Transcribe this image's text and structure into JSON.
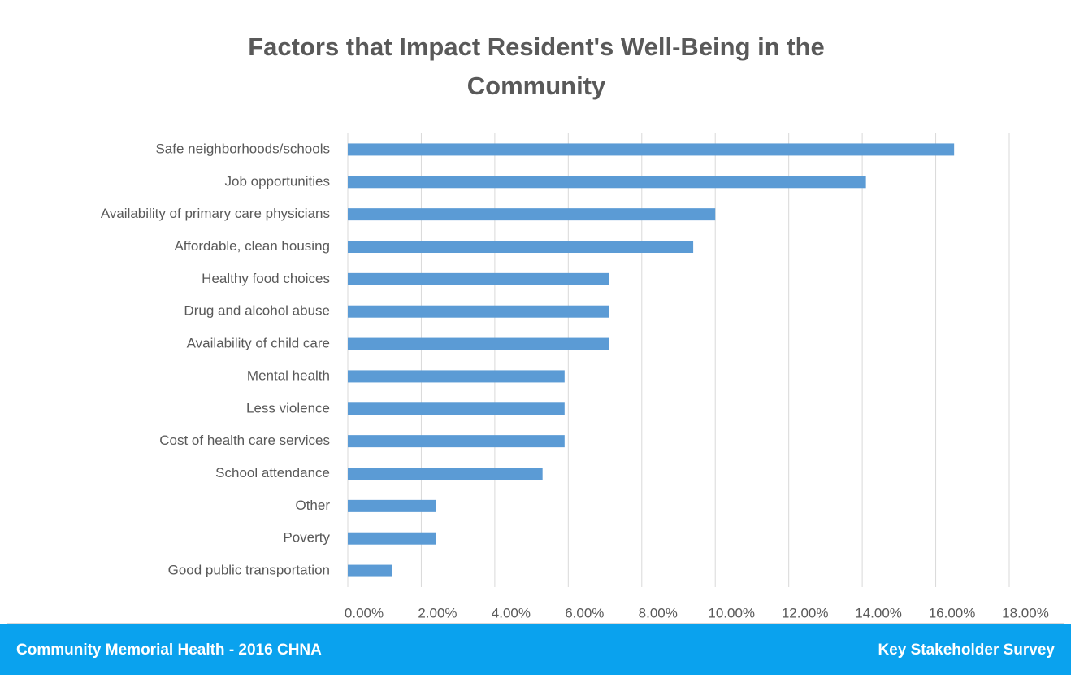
{
  "chart_data": {
    "type": "bar",
    "orientation": "horizontal",
    "title": [
      "Factors that Impact Resident's Well-Being in the",
      "Community"
    ],
    "categories": [
      "Safe neighborhoods/schools",
      "Job opportunities",
      "Availability of primary care physicians",
      "Affordable, clean housing",
      "Healthy food choices",
      "Drug and alcohol abuse",
      "Availability of child care",
      "Mental health",
      "Less violence",
      "Cost of health care services",
      "School attendance",
      "Other",
      "Poverty",
      "Good public transportation"
    ],
    "values": [
      16.5,
      14.1,
      10.0,
      9.4,
      7.1,
      7.1,
      7.1,
      5.9,
      5.9,
      5.9,
      5.3,
      2.4,
      2.4,
      1.2
    ],
    "color": "#5b9bd5",
    "xlim": [
      0,
      18
    ],
    "xticks": [
      {
        "value": 0,
        "label": "0.00%"
      },
      {
        "value": 2,
        "label": "2.00%"
      },
      {
        "value": 4,
        "label": "4.00%"
      },
      {
        "value": 6,
        "label": "6.00%"
      },
      {
        "value": 8,
        "label": "8.00%"
      },
      {
        "value": 10,
        "label": "10.00%"
      },
      {
        "value": 12,
        "label": "12.00%"
      },
      {
        "value": 14,
        "label": "14.00%"
      },
      {
        "value": 16,
        "label": "16.00%"
      },
      {
        "value": 18,
        "label": "18.00%"
      }
    ],
    "grid": true
  },
  "footer": {
    "left": "Community Memorial Health - 2016 CHNA",
    "right": "Key Stakeholder Survey"
  }
}
